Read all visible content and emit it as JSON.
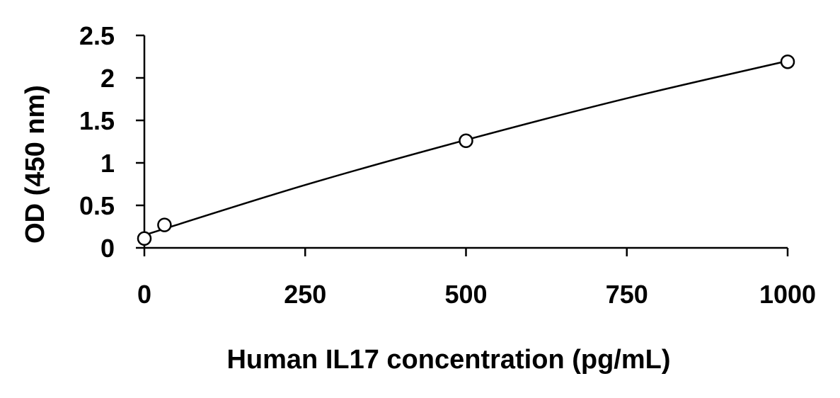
{
  "chart_data": {
    "type": "scatter",
    "title": "",
    "xlabel": "Human IL17 concentration (pg/mL)",
    "ylabel": "OD (450 nm)",
    "xlim": [
      0,
      1000
    ],
    "ylim": [
      0,
      2.5
    ],
    "xticks": [
      0,
      250,
      500,
      750,
      1000
    ],
    "xtick_labels": [
      "0",
      "250",
      "500",
      "750",
      "1000"
    ],
    "yticks": [
      0,
      0.5,
      1,
      1.5,
      2,
      2.5
    ],
    "ytick_labels": [
      "0",
      "0.5",
      "1",
      "1.5",
      "2",
      "2.5"
    ],
    "grid": false,
    "legend": "none",
    "series": [
      {
        "marker": "open-circle",
        "points": [
          {
            "x": 0,
            "y": 0.11
          },
          {
            "x": 31.25,
            "y": 0.27
          },
          {
            "x": 500,
            "y": 1.26
          },
          {
            "x": 1000,
            "y": 2.19
          }
        ]
      }
    ],
    "fit_curve": {
      "style": "solid-line",
      "points": [
        {
          "x": 0,
          "y": 0.15
        },
        {
          "x": 250,
          "y": 0.74
        },
        {
          "x": 500,
          "y": 1.27
        },
        {
          "x": 750,
          "y": 1.76
        },
        {
          "x": 1000,
          "y": 2.2
        }
      ]
    },
    "colors": {
      "line": "#000000",
      "marker": "#000000",
      "background": "#ffffff"
    }
  }
}
